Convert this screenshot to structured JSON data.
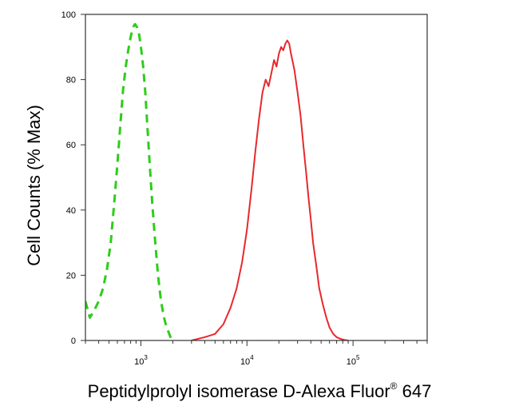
{
  "chart_data": {
    "type": "line",
    "title": "",
    "xlabel": {
      "main": "Peptidylprolyl isomerase D-Alexa Fluor",
      "superscript": "®",
      "suffix": " 647"
    },
    "ylabel": "Cell Counts (% Max)",
    "x_scale": "log",
    "xlim": [
      300,
      500000
    ],
    "ylim": [
      0,
      100
    ],
    "x_major_ticks": [
      {
        "value": 1000,
        "base": "10",
        "exp": "3"
      },
      {
        "value": 10000,
        "base": "10",
        "exp": "4"
      },
      {
        "value": 100000,
        "base": "10",
        "exp": "5"
      }
    ],
    "y_ticks": [
      0,
      20,
      40,
      60,
      80,
      100
    ],
    "grid": false,
    "legend": "none",
    "series": [
      {
        "color": "#2ecc1a",
        "dash": "dashed",
        "x": [
          300,
          330,
          360,
          400,
          440,
          480,
          520,
          560,
          600,
          640,
          680,
          720,
          760,
          800,
          840,
          880,
          920,
          960,
          1000,
          1050,
          1100,
          1150,
          1200,
          1280,
          1350,
          1450,
          1550,
          1650,
          1750,
          1850,
          1950
        ],
        "y": [
          12,
          7,
          9,
          12,
          16,
          22,
          30,
          42,
          54,
          66,
          77,
          84,
          89,
          93,
          96,
          97,
          96,
          94,
          90,
          84,
          76,
          66,
          56,
          42,
          32,
          20,
          12,
          7,
          4,
          2,
          0
        ]
      },
      {
        "color": "#e8282d",
        "dash": "solid",
        "x": [
          3000,
          4000,
          5000,
          6000,
          7000,
          8000,
          9000,
          10000,
          11000,
          12000,
          13000,
          14000,
          15000,
          16000,
          17000,
          18000,
          19000,
          20000,
          21000,
          22000,
          23000,
          24000,
          25000,
          26000,
          28000,
          30000,
          32000,
          34000,
          36000,
          38000,
          40000,
          42000,
          45000,
          48000,
          52000,
          56000,
          60000,
          65000,
          70000,
          75000,
          80000,
          85000,
          90000
        ],
        "y": [
          0,
          1,
          2,
          5,
          10,
          16,
          24,
          34,
          46,
          58,
          68,
          76,
          80,
          78,
          82,
          86,
          84,
          88,
          90,
          89,
          91,
          92,
          91,
          88,
          83,
          76,
          69,
          60,
          52,
          44,
          37,
          30,
          23,
          16,
          11,
          7,
          4,
          2,
          1,
          0.6,
          0.3,
          0.1,
          0
        ]
      }
    ]
  }
}
